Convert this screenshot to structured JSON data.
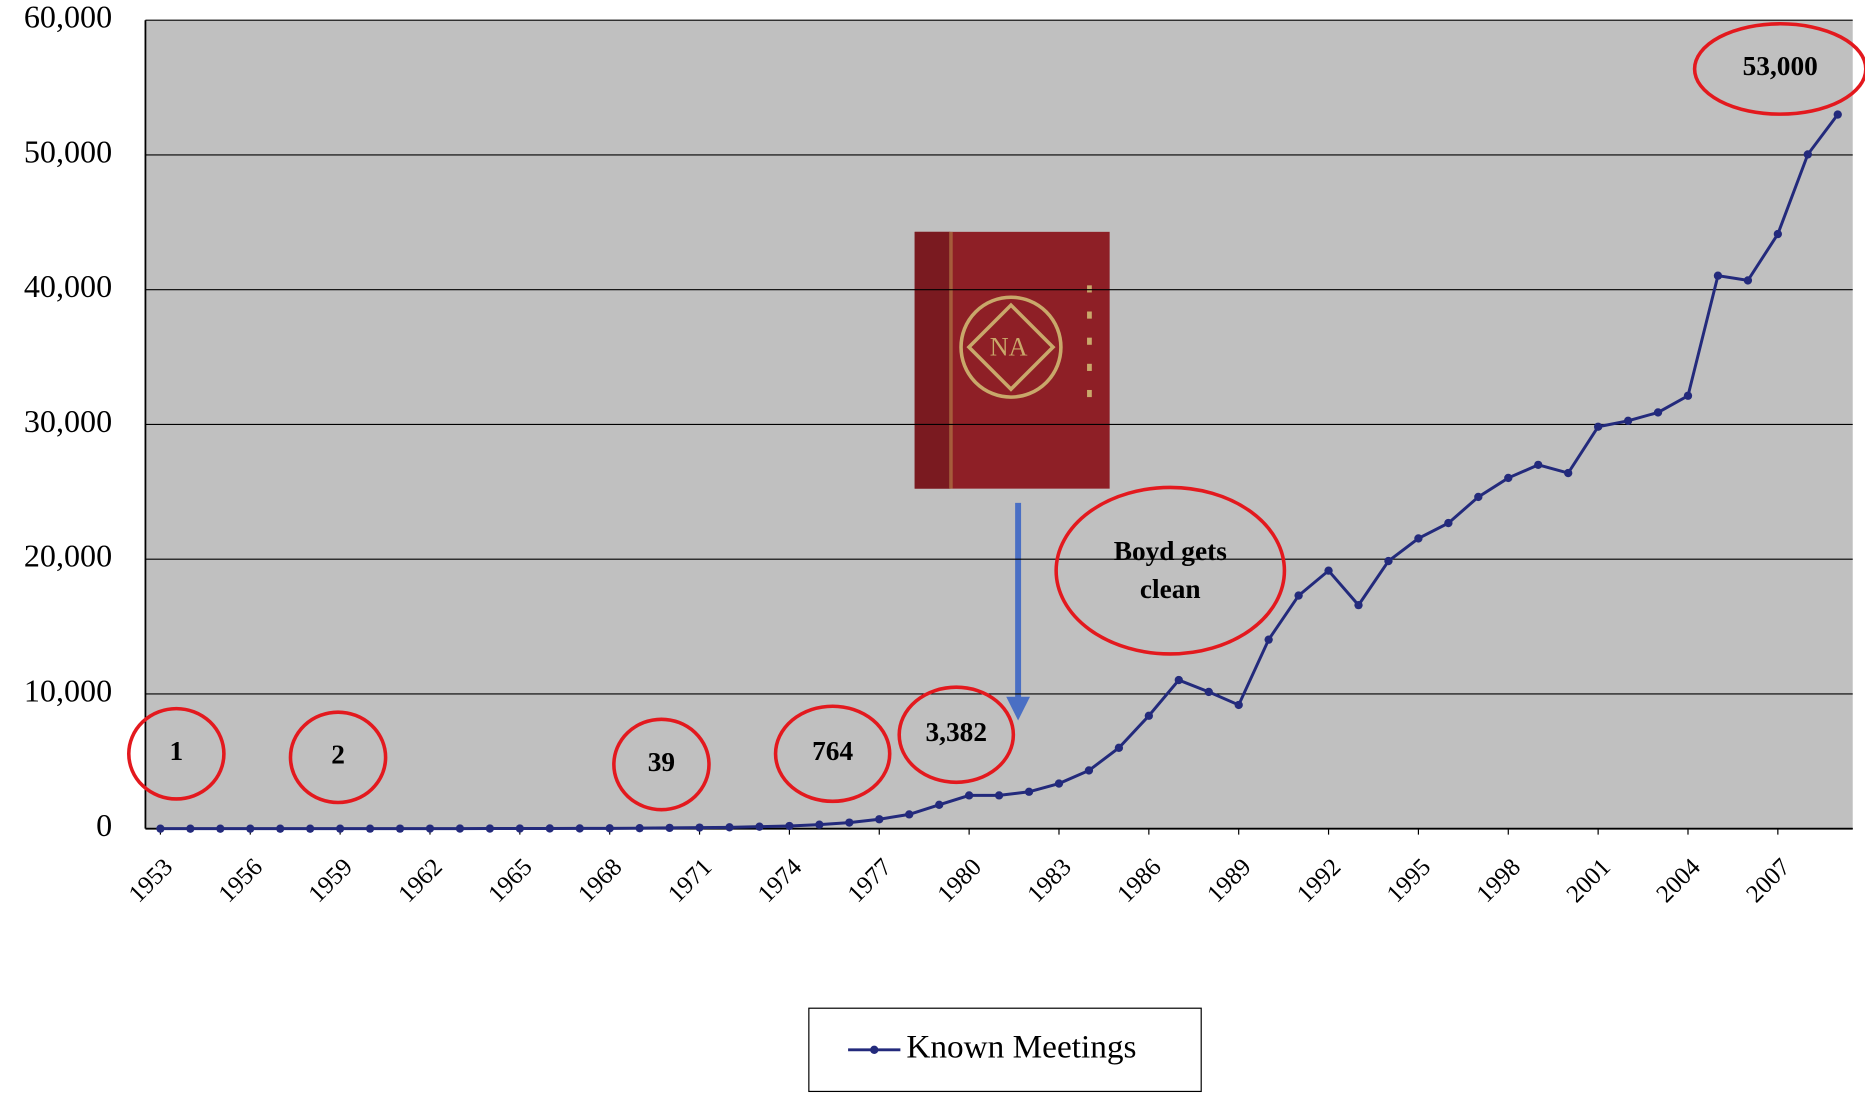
{
  "chart_data": {
    "type": "line",
    "x": [
      1953,
      1954,
      1955,
      1956,
      1957,
      1958,
      1959,
      1960,
      1961,
      1962,
      1963,
      1964,
      1965,
      1966,
      1967,
      1968,
      1969,
      1970,
      1971,
      1972,
      1973,
      1974,
      1975,
      1976,
      1977,
      1978,
      1979,
      1980,
      1981,
      1982,
      1983,
      1984,
      1985,
      1986,
      1987,
      1988,
      1989,
      1990,
      1991,
      1992,
      1993,
      1994,
      1995,
      1996,
      1997,
      1998,
      1999,
      2000,
      2001,
      2002,
      2003,
      2004,
      2005,
      2006,
      2007,
      2008,
      2009
    ],
    "series": [
      {
        "name": "Known Meetings",
        "color": "#232a7c",
        "values": [
          1,
          1,
          1,
          1,
          2,
          2,
          2,
          3,
          4,
          5,
          7,
          10,
          13,
          17,
          20,
          25,
          39,
          60,
          80,
          100,
          150,
          200,
          300,
          450,
          700,
          1060,
          1770,
          2470,
          2470,
          2740,
          3350,
          4320,
          6000,
          8380,
          11030,
          10150,
          9180,
          14030,
          17300,
          19150,
          16590,
          19860,
          21540,
          22680,
          24620,
          26030,
          27000,
          26390,
          29830,
          30270,
          30890,
          32130,
          41040,
          40690,
          44130,
          50040,
          53000
        ]
      }
    ],
    "xlim": [
      1952.5,
      2009.5
    ],
    "xticks": [
      1953,
      1956,
      1959,
      1962,
      1965,
      1968,
      1971,
      1974,
      1977,
      1980,
      1983,
      1986,
      1989,
      1992,
      1995,
      1998,
      2001,
      2004,
      2007
    ],
    "ylim": [
      0,
      60000
    ],
    "yticks": [
      0,
      {
        "value": 10000,
        "label": "10,000"
      },
      {
        "value": 20000,
        "label": "20,000"
      },
      {
        "value": 30000,
        "label": "30,000"
      },
      {
        "value": 40000,
        "label": "40,000"
      },
      {
        "value": 50000,
        "label": "50,000"
      },
      {
        "value": 60000,
        "label": "60,000"
      }
    ],
    "grid": true,
    "legend": "bottom",
    "annotations": [
      "1",
      "2",
      "39",
      "764",
      "3,382",
      "Boyd gets clean",
      "53,000"
    ]
  }
}
